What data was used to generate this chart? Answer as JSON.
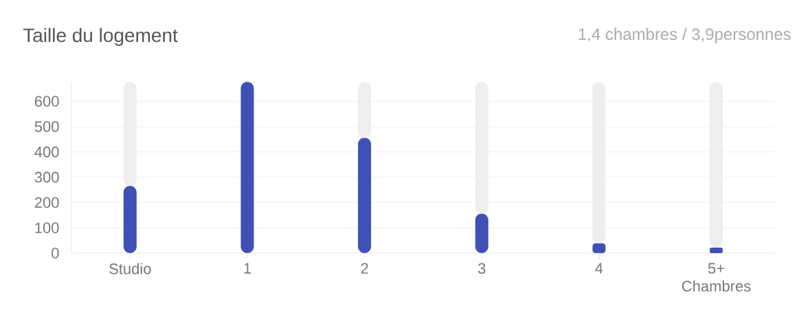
{
  "chart_data": {
    "type": "bar",
    "title": "Taille du logement",
    "subtitle": "1,4 chambres / 3,9personnes",
    "categories": [
      "Studio",
      "1",
      "2",
      "3",
      "4",
      "5+ Chambres"
    ],
    "stacked": true,
    "series": [
      {
        "color": "#3f51b5",
        "values": [
          266,
          677,
          456,
          156,
          39,
          22
        ]
      },
      {
        "color": "#eeeeee",
        "values": [
          411,
          0,
          221,
          521,
          638,
          655
        ]
      }
    ],
    "ylim": [
      0,
      677
    ],
    "yticks": [
      0,
      100,
      200,
      300,
      400,
      500,
      600
    ],
    "grid": "y"
  }
}
